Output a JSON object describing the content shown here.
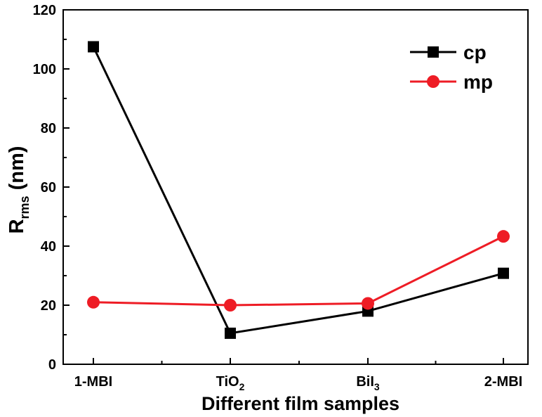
{
  "chart_data": {
    "type": "line",
    "categories": [
      "1-MBI",
      "TiO2",
      "BiI3",
      "2-MBI"
    ],
    "category_display": [
      {
        "main": "1-MBI",
        "sub": ""
      },
      {
        "main": "TiO",
        "sub": "2"
      },
      {
        "main": "BiI",
        "sub": "3"
      },
      {
        "main": "2-MBI",
        "sub": ""
      }
    ],
    "series": [
      {
        "name": "cp",
        "values": [
          107.5,
          10.5,
          18.0,
          30.8
        ],
        "color": "#000000",
        "marker": "square"
      },
      {
        "name": "mp",
        "values": [
          21.0,
          20.0,
          20.6,
          43.3
        ],
        "color": "#ee1c25",
        "marker": "circle"
      }
    ],
    "xlabel": "Different film samples",
    "ylabel": {
      "main": "R",
      "sub": "rms",
      "rest": " (nm)"
    },
    "ylim": [
      0,
      120
    ],
    "yticks": [
      0,
      20,
      40,
      60,
      80,
      100,
      120
    ],
    "grid": false,
    "legend": "top-right"
  }
}
